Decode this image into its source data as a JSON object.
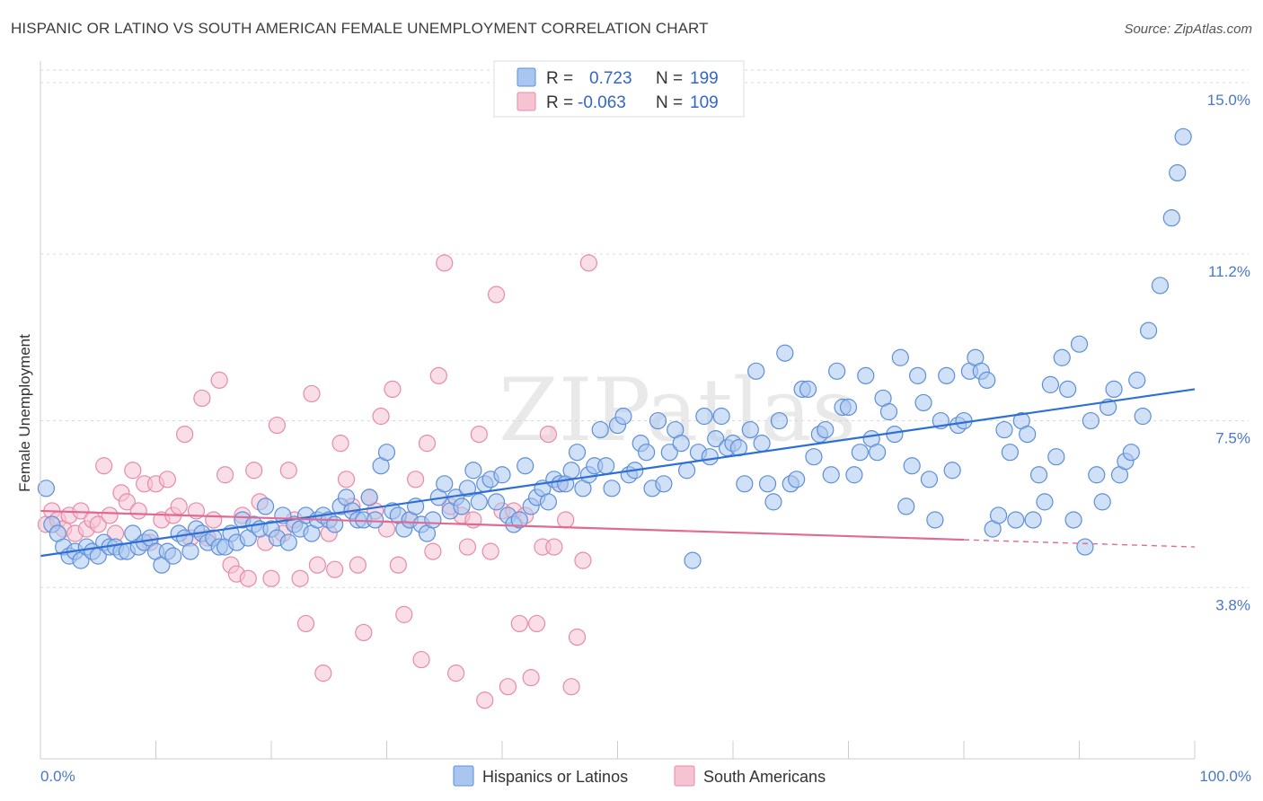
{
  "header": {
    "title": "HISPANIC OR LATINO VS SOUTH AMERICAN FEMALE UNEMPLOYMENT CORRELATION CHART",
    "source": "Source: ZipAtlas.com"
  },
  "watermark": "ZIPatlas",
  "legend": {
    "rows": [
      {
        "r_label": "R =",
        "r_value": "0.723",
        "n_label": "N =",
        "n_value": "199",
        "color": "#a9c6f0"
      },
      {
        "r_label": "R =",
        "r_value": "-0.063",
        "n_label": "N =",
        "n_value": "109",
        "color": "#f6b8cc"
      }
    ]
  },
  "bottom_legend": [
    "Hispanics or Latinos",
    "South Americans"
  ],
  "colors": {
    "blue_fill": "#a9c6f0",
    "blue_stroke": "#5d8fd8",
    "blue_line": "#2e6fd6",
    "pink_fill": "#f6c3d3",
    "pink_stroke": "#e88aa8",
    "pink_line": "#e06a93",
    "grid": "#d9d9d9",
    "tick_label": "#4a78c8"
  },
  "chart_data": {
    "type": "scatter",
    "title": "HISPANIC OR LATINO VS SOUTH AMERICAN FEMALE UNEMPLOYMENT CORRELATION CHART",
    "ylabel": "Female Unemployment",
    "xlabel": "",
    "xlim": [
      0,
      100
    ],
    "ylim": [
      0,
      15.4
    ],
    "x_tick_labels": [
      "0.0%",
      "100.0%"
    ],
    "y_ticks": [
      {
        "value": 3.8,
        "label": "3.8%"
      },
      {
        "value": 7.5,
        "label": "7.5%"
      },
      {
        "value": 11.2,
        "label": "11.2%"
      },
      {
        "value": 15.0,
        "label": "15.0%"
      }
    ],
    "grid": true,
    "legend_position": "top-center",
    "series": [
      {
        "name": "Hispanics or Latinos",
        "r": 0.723,
        "n": 199,
        "trend": {
          "x": [
            0,
            100
          ],
          "y": [
            4.5,
            8.2
          ],
          "dashed_from": null
        },
        "points": [
          [
            0.5,
            6.0
          ],
          [
            1,
            5.2
          ],
          [
            1.5,
            5.0
          ],
          [
            2,
            4.7
          ],
          [
            2.5,
            4.5
          ],
          [
            3,
            4.6
          ],
          [
            3.5,
            4.4
          ],
          [
            4,
            4.7
          ],
          [
            4.5,
            4.6
          ],
          [
            5,
            4.5
          ],
          [
            5.5,
            4.8
          ],
          [
            6,
            4.7
          ],
          [
            6.5,
            4.7
          ],
          [
            7,
            4.6
          ],
          [
            7.5,
            4.6
          ],
          [
            8,
            5.0
          ],
          [
            8.5,
            4.7
          ],
          [
            9,
            4.8
          ],
          [
            9.5,
            4.9
          ],
          [
            10,
            4.6
          ],
          [
            10.5,
            4.3
          ],
          [
            11,
            4.6
          ],
          [
            11.5,
            4.5
          ],
          [
            12,
            5.0
          ],
          [
            12.5,
            4.9
          ],
          [
            13,
            4.6
          ],
          [
            13.5,
            5.1
          ],
          [
            14,
            5.0
          ],
          [
            14.5,
            4.8
          ],
          [
            15,
            4.9
          ],
          [
            15.5,
            4.7
          ],
          [
            16,
            4.7
          ],
          [
            16.5,
            5.0
          ],
          [
            17,
            4.8
          ],
          [
            17.5,
            5.3
          ],
          [
            18,
            4.9
          ],
          [
            18.5,
            5.2
          ],
          [
            19,
            5.1
          ],
          [
            19.5,
            5.6
          ],
          [
            20,
            5.1
          ],
          [
            20.5,
            4.9
          ],
          [
            21,
            5.4
          ],
          [
            21.5,
            4.8
          ],
          [
            22,
            5.2
          ],
          [
            22.5,
            5.1
          ],
          [
            23,
            5.4
          ],
          [
            23.5,
            5.0
          ],
          [
            24,
            5.3
          ],
          [
            24.5,
            5.4
          ],
          [
            25,
            5.3
          ],
          [
            25.5,
            5.2
          ],
          [
            26,
            5.6
          ],
          [
            26.5,
            5.8
          ],
          [
            27,
            5.5
          ],
          [
            27.5,
            5.3
          ],
          [
            28,
            5.3
          ],
          [
            28.5,
            5.8
          ],
          [
            29,
            5.3
          ],
          [
            29.5,
            6.5
          ],
          [
            30,
            6.8
          ],
          [
            30.5,
            5.5
          ],
          [
            31,
            5.4
          ],
          [
            31.5,
            5.1
          ],
          [
            32,
            5.3
          ],
          [
            32.5,
            5.6
          ],
          [
            33,
            5.2
          ],
          [
            33.5,
            5.0
          ],
          [
            34,
            5.3
          ],
          [
            34.5,
            5.8
          ],
          [
            35,
            6.1
          ],
          [
            35.5,
            5.5
          ],
          [
            36,
            5.8
          ],
          [
            36.5,
            5.6
          ],
          [
            37,
            6.0
          ],
          [
            37.5,
            6.4
          ],
          [
            38,
            5.7
          ],
          [
            38.5,
            6.1
          ],
          [
            39,
            6.2
          ],
          [
            39.5,
            5.7
          ],
          [
            40,
            6.3
          ],
          [
            40.5,
            5.4
          ],
          [
            41,
            5.2
          ],
          [
            41.5,
            5.3
          ],
          [
            42,
            6.5
          ],
          [
            42.5,
            5.6
          ],
          [
            43,
            5.8
          ],
          [
            43.5,
            6.0
          ],
          [
            44,
            5.7
          ],
          [
            44.5,
            6.2
          ],
          [
            45,
            6.1
          ],
          [
            45.5,
            6.1
          ],
          [
            46,
            6.4
          ],
          [
            46.5,
            6.8
          ],
          [
            47,
            6.0
          ],
          [
            47.5,
            6.3
          ],
          [
            48,
            6.5
          ],
          [
            48.5,
            7.3
          ],
          [
            49,
            6.5
          ],
          [
            49.5,
            6.0
          ],
          [
            50,
            7.4
          ],
          [
            50.5,
            7.6
          ],
          [
            51,
            6.3
          ],
          [
            51.5,
            6.4
          ],
          [
            52,
            7.0
          ],
          [
            52.5,
            6.8
          ],
          [
            53,
            6.0
          ],
          [
            53.5,
            7.5
          ],
          [
            54,
            6.1
          ],
          [
            54.5,
            6.8
          ],
          [
            55,
            7.3
          ],
          [
            55.5,
            7.0
          ],
          [
            56,
            6.4
          ],
          [
            56.5,
            4.4
          ],
          [
            57,
            6.8
          ],
          [
            57.5,
            7.6
          ],
          [
            58,
            6.7
          ],
          [
            58.5,
            7.1
          ],
          [
            59,
            7.6
          ],
          [
            59.5,
            6.9
          ],
          [
            60,
            7.0
          ],
          [
            60.5,
            6.9
          ],
          [
            61,
            6.1
          ],
          [
            61.5,
            7.3
          ],
          [
            62,
            8.6
          ],
          [
            62.5,
            7.0
          ],
          [
            63,
            6.1
          ],
          [
            63.5,
            5.7
          ],
          [
            64,
            7.5
          ],
          [
            64.5,
            9.0
          ],
          [
            65,
            6.1
          ],
          [
            65.5,
            6.2
          ],
          [
            66,
            8.2
          ],
          [
            66.5,
            8.2
          ],
          [
            67,
            6.7
          ],
          [
            67.5,
            7.2
          ],
          [
            68,
            7.3
          ],
          [
            68.5,
            6.3
          ],
          [
            69,
            8.6
          ],
          [
            69.5,
            7.8
          ],
          [
            70,
            7.8
          ],
          [
            70.5,
            6.3
          ],
          [
            71,
            6.8
          ],
          [
            71.5,
            8.5
          ],
          [
            72,
            7.1
          ],
          [
            72.5,
            6.8
          ],
          [
            73,
            8.0
          ],
          [
            73.5,
            7.7
          ],
          [
            74,
            7.2
          ],
          [
            74.5,
            8.9
          ],
          [
            75,
            5.6
          ],
          [
            75.5,
            6.5
          ],
          [
            76,
            8.5
          ],
          [
            76.5,
            7.9
          ],
          [
            77,
            6.2
          ],
          [
            77.5,
            5.3
          ],
          [
            78,
            7.5
          ],
          [
            78.5,
            8.5
          ],
          [
            79,
            6.4
          ],
          [
            79.5,
            7.4
          ],
          [
            80,
            7.5
          ],
          [
            80.5,
            8.6
          ],
          [
            81,
            8.9
          ],
          [
            81.5,
            8.6
          ],
          [
            82,
            8.4
          ],
          [
            82.5,
            5.1
          ],
          [
            83,
            5.4
          ],
          [
            83.5,
            7.3
          ],
          [
            84,
            6.8
          ],
          [
            84.5,
            5.3
          ],
          [
            85,
            7.5
          ],
          [
            85.5,
            7.2
          ],
          [
            86,
            5.3
          ],
          [
            86.5,
            6.3
          ],
          [
            87,
            5.7
          ],
          [
            87.5,
            8.3
          ],
          [
            88,
            6.7
          ],
          [
            88.5,
            8.9
          ],
          [
            89,
            8.2
          ],
          [
            89.5,
            5.3
          ],
          [
            90,
            9.2
          ],
          [
            90.5,
            4.7
          ],
          [
            91,
            7.5
          ],
          [
            91.5,
            6.3
          ],
          [
            92,
            5.7
          ],
          [
            92.5,
            7.8
          ],
          [
            93,
            8.2
          ],
          [
            93.5,
            6.3
          ],
          [
            94,
            6.6
          ],
          [
            94.5,
            6.8
          ],
          [
            95,
            8.4
          ],
          [
            95.5,
            7.6
          ],
          [
            96,
            9.5
          ],
          [
            97,
            10.5
          ],
          [
            98,
            12.0
          ],
          [
            98.5,
            13.0
          ],
          [
            99,
            13.8
          ]
        ]
      },
      {
        "name": "South Americans",
        "r": -0.063,
        "n": 109,
        "trend": {
          "x": [
            0,
            100
          ],
          "y": [
            5.5,
            4.7
          ],
          "solid_until_x": 80
        },
        "points": [
          [
            0.5,
            5.2
          ],
          [
            1,
            5.5
          ],
          [
            1.5,
            5.3
          ],
          [
            2,
            5.1
          ],
          [
            2.5,
            5.4
          ],
          [
            3,
            5.0
          ],
          [
            3.5,
            5.5
          ],
          [
            4,
            5.1
          ],
          [
            4.5,
            5.3
          ],
          [
            5,
            5.2
          ],
          [
            5.5,
            6.5
          ],
          [
            6,
            5.4
          ],
          [
            6.5,
            5.0
          ],
          [
            7,
            5.9
          ],
          [
            7.5,
            5.7
          ],
          [
            8,
            6.4
          ],
          [
            8.5,
            5.5
          ],
          [
            9,
            6.1
          ],
          [
            9.5,
            4.8
          ],
          [
            10,
            6.1
          ],
          [
            10.5,
            5.3
          ],
          [
            11,
            6.2
          ],
          [
            11.5,
            5.4
          ],
          [
            12,
            5.6
          ],
          [
            12.5,
            7.2
          ],
          [
            13,
            4.9
          ],
          [
            13.5,
            5.5
          ],
          [
            14,
            8.0
          ],
          [
            14.5,
            4.9
          ],
          [
            15,
            5.3
          ],
          [
            15.5,
            8.4
          ],
          [
            16,
            6.3
          ],
          [
            16.5,
            4.3
          ],
          [
            17,
            4.1
          ],
          [
            17.5,
            5.4
          ],
          [
            18,
            4.0
          ],
          [
            18.5,
            6.4
          ],
          [
            19,
            5.7
          ],
          [
            19.5,
            4.8
          ],
          [
            20,
            4.0
          ],
          [
            20.5,
            7.4
          ],
          [
            21,
            5.0
          ],
          [
            21.5,
            6.4
          ],
          [
            22,
            5.3
          ],
          [
            22.5,
            4.0
          ],
          [
            23,
            3.0
          ],
          [
            23.5,
            8.1
          ],
          [
            24,
            4.3
          ],
          [
            24.5,
            1.9
          ],
          [
            25,
            5.0
          ],
          [
            25.5,
            4.2
          ],
          [
            26,
            7.0
          ],
          [
            26.5,
            6.2
          ],
          [
            27,
            5.6
          ],
          [
            27.5,
            4.3
          ],
          [
            28,
            2.8
          ],
          [
            28.5,
            5.8
          ],
          [
            29,
            5.5
          ],
          [
            29.5,
            7.6
          ],
          [
            30,
            5.1
          ],
          [
            30.5,
            8.2
          ],
          [
            31,
            4.3
          ],
          [
            31.5,
            3.2
          ],
          [
            32,
            5.3
          ],
          [
            32.5,
            6.2
          ],
          [
            33,
            2.2
          ],
          [
            33.5,
            7.0
          ],
          [
            34,
            4.6
          ],
          [
            34.5,
            8.5
          ],
          [
            35,
            11.0
          ],
          [
            35.5,
            5.6
          ],
          [
            36,
            1.9
          ],
          [
            36.5,
            5.4
          ],
          [
            37,
            4.7
          ],
          [
            37.5,
            5.3
          ],
          [
            38,
            7.2
          ],
          [
            38.5,
            1.3
          ],
          [
            39,
            4.6
          ],
          [
            39.5,
            10.3
          ],
          [
            40,
            5.5
          ],
          [
            40.5,
            1.6
          ],
          [
            41,
            5.5
          ],
          [
            41.5,
            3.0
          ],
          [
            42,
            5.4
          ],
          [
            42.5,
            1.8
          ],
          [
            43,
            3.0
          ],
          [
            43.5,
            4.7
          ],
          [
            44,
            7.2
          ],
          [
            44.5,
            4.7
          ],
          [
            45,
            6.1
          ],
          [
            45.5,
            5.3
          ],
          [
            46,
            1.6
          ],
          [
            46.5,
            2.7
          ],
          [
            47,
            4.4
          ],
          [
            47.5,
            11.0
          ]
        ]
      }
    ]
  }
}
